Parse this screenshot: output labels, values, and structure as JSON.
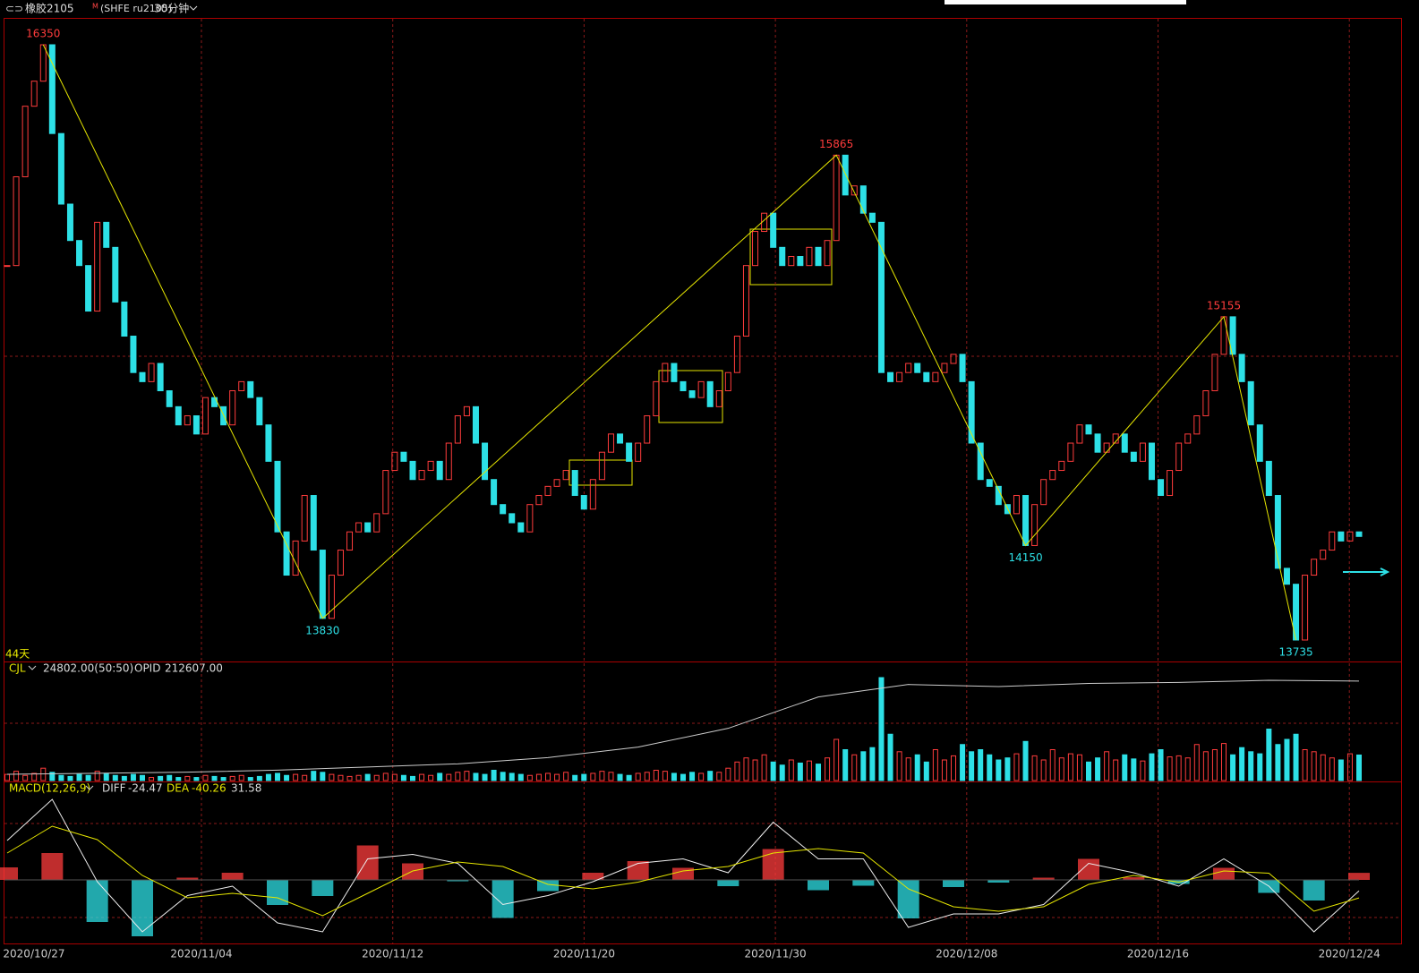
{
  "header": {
    "symbol": "橡胶2105",
    "flag": "M",
    "code": "(SHFE ru2105)",
    "period": "30分钟"
  },
  "price_panel": {
    "days": "44天",
    "closes": [
      15380,
      15770,
      16080,
      16190,
      16350,
      15960,
      15650,
      15490,
      15380,
      15180,
      15570,
      15460,
      15220,
      15070,
      14910,
      14870,
      14950,
      14830,
      14760,
      14680,
      14720,
      14640,
      14800,
      14760,
      14680,
      14830,
      14870,
      14800,
      14680,
      14520,
      14210,
      14020,
      14170,
      14370,
      14130,
      13830,
      14020,
      14130,
      14210,
      14250,
      14210,
      14290,
      14480,
      14560,
      14520,
      14440,
      14480,
      14520,
      14440,
      14600,
      14720,
      14760,
      14600,
      14440,
      14330,
      14290,
      14250,
      14210,
      14330,
      14370,
      14410,
      14440,
      14480,
      14370,
      14310,
      14440,
      14560,
      14640,
      14600,
      14520,
      14600,
      14720,
      14870,
      14950,
      14870,
      14830,
      14800,
      14870,
      14760,
      14830,
      14910,
      15070,
      15380,
      15530,
      15610,
      15460,
      15380,
      15420,
      15380,
      15460,
      15380,
      15490,
      15865,
      15690,
      15730,
      15610,
      15570,
      14910,
      14870,
      14910,
      14950,
      14910,
      14870,
      14910,
      14950,
      14990,
      14870,
      14600,
      14440,
      14410,
      14330,
      14290,
      14370,
      14150,
      14330,
      14440,
      14480,
      14520,
      14600,
      14680,
      14640,
      14560,
      14600,
      14640,
      14560,
      14520,
      14600,
      14440,
      14370,
      14480,
      14600,
      14640,
      14720,
      14830,
      14990,
      15155,
      14990,
      14870,
      14680,
      14520,
      14370,
      14050,
      13980,
      13735,
      14020,
      14090,
      14130,
      14210,
      14170,
      14210,
      14190
    ],
    "pivots": [
      16350,
      13830,
      15865,
      14150,
      15155,
      13735
    ]
  },
  "volume_panel": {
    "label": "CJL",
    "value": {
      "value": 24802,
      "label": "24802.00(50:50)"
    },
    "opid_label": "OPID",
    "opid_value": {
      "value": 212607,
      "label": "212607.00"
    },
    "volumes": [
      6000,
      9000,
      5000,
      7000,
      12000,
      8000,
      5000,
      4000,
      6000,
      5000,
      9000,
      7000,
      5000,
      4000,
      6000,
      5000,
      3000,
      4000,
      5000,
      3000,
      4000,
      3000,
      5000,
      4000,
      3000,
      4000,
      5000,
      3000,
      4000,
      6000,
      7000,
      5000,
      6000,
      5000,
      9000,
      8000,
      6000,
      5000,
      4000,
      5000,
      6000,
      5000,
      7000,
      6000,
      5000,
      4000,
      6000,
      5000,
      7000,
      6000,
      8000,
      9000,
      7000,
      6000,
      10000,
      8000,
      7000,
      6000,
      5000,
      6000,
      7000,
      6000,
      8000,
      5000,
      6000,
      7000,
      9000,
      8000,
      6000,
      5000,
      7000,
      8000,
      10000,
      9000,
      7000,
      6000,
      8000,
      7000,
      9000,
      8000,
      12000,
      18000,
      22000,
      20000,
      25000,
      18000,
      15000,
      20000,
      17000,
      19000,
      16000,
      22000,
      40000,
      30000,
      25000,
      28000,
      32000,
      100000,
      45000,
      28000,
      22000,
      25000,
      18000,
      30000,
      20000,
      24000,
      35000,
      28000,
      30000,
      25000,
      20000,
      22000,
      26000,
      38000,
      24000,
      20000,
      30000,
      22000,
      26000,
      25000,
      18000,
      22000,
      28000,
      20000,
      25000,
      21000,
      19000,
      26000,
      30000,
      23000,
      24000,
      22000,
      35000,
      28000,
      30000,
      36000,
      25000,
      32000,
      28000,
      26000,
      50000,
      35000,
      40000,
      45000,
      30000,
      28000,
      25000,
      22000,
      20000,
      26000,
      24802
    ],
    "opid": [
      168000,
      168500,
      169000,
      170000,
      171500,
      173000,
      176000,
      181000,
      190000,
      205000,
      211000,
      210000,
      211500,
      212000,
      213000,
      212607
    ]
  },
  "macd_panel": {
    "label": "MACD(12,26,9)",
    "diff_label": "DIFF",
    "diff_value": -24.47,
    "dea_label": "DEA",
    "dea_value": -40.26,
    "macd_value": 31.58,
    "diff": [
      88,
      180,
      -4,
      -116,
      -35,
      -14,
      -96,
      -116,
      47,
      57,
      37,
      -55,
      -35,
      -4,
      37,
      47,
      16,
      129,
      47,
      47,
      -106,
      -76,
      -76,
      -55,
      37,
      16,
      -14,
      47,
      -14,
      -116,
      -24.47
    ],
    "dea": [
      60,
      120,
      90,
      10,
      -40,
      -30,
      -40,
      -80,
      -30,
      20,
      40,
      30,
      -10,
      -20,
      -5,
      20,
      30,
      60,
      70,
      60,
      -20,
      -60,
      -70,
      -60,
      -10,
      10,
      -5,
      20,
      15,
      -70,
      -40.26
    ],
    "macd": [
      56,
      120,
      -188,
      -252,
      10,
      32,
      -112,
      -72,
      154,
      74,
      -6,
      -170,
      -50,
      32,
      84,
      54,
      -28,
      138,
      -46,
      -26,
      -172,
      -32,
      -12,
      10,
      94,
      12,
      -18,
      54,
      -58,
      -92,
      31.58
    ]
  },
  "x_axis": {
    "dates": [
      "2020/10/27",
      "2020/11/04",
      "2020/11/12",
      "2020/11/20",
      "2020/11/30",
      "2020/12/08",
      "2020/12/16",
      "2020/12/24"
    ]
  }
}
